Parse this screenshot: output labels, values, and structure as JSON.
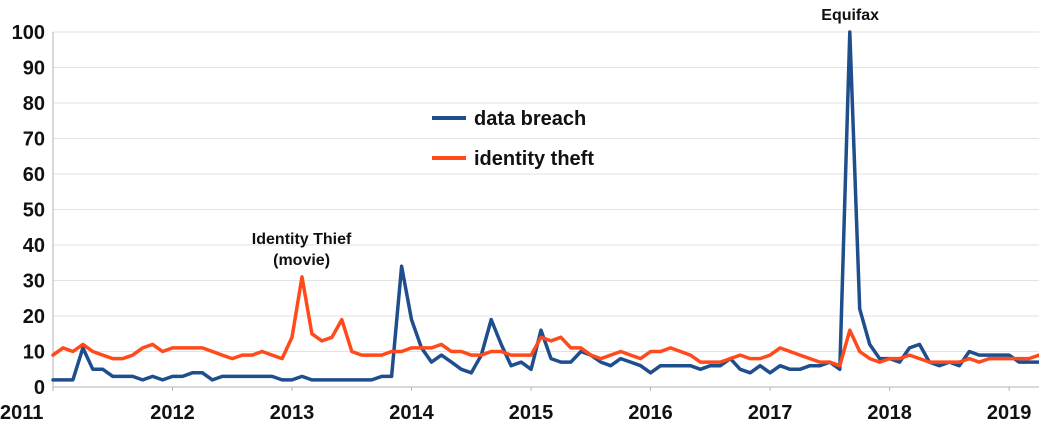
{
  "chart_data": {
    "type": "line",
    "title": "",
    "xlabel": "",
    "ylabel": "",
    "xlim": [
      2011,
      2019.25
    ],
    "ylim": [
      0,
      100
    ],
    "y_ticks": [
      0,
      10,
      20,
      30,
      40,
      50,
      60,
      70,
      80,
      90,
      100
    ],
    "x_ticks": [
      2011,
      2012,
      2013,
      2014,
      2015,
      2016,
      2017,
      2018,
      2019
    ],
    "grid": "horizontal",
    "legend_position": "upper-middle",
    "x_start": "2011-01",
    "x_step": "month",
    "series": [
      {
        "name": "data breach",
        "color": "#1f4e8c",
        "values": [
          2,
          2,
          2,
          11,
          5,
          5,
          3,
          3,
          3,
          2,
          3,
          2,
          3,
          3,
          4,
          4,
          2,
          3,
          3,
          3,
          3,
          3,
          3,
          2,
          2,
          3,
          2,
          2,
          2,
          2,
          2,
          2,
          2,
          3,
          3,
          34,
          19,
          11,
          7,
          9,
          7,
          5,
          4,
          9,
          19,
          12,
          6,
          7,
          5,
          16,
          8,
          7,
          7,
          10,
          9,
          7,
          6,
          8,
          7,
          6,
          4,
          6,
          6,
          6,
          6,
          5,
          6,
          6,
          8,
          5,
          4,
          6,
          4,
          6,
          5,
          5,
          6,
          6,
          7,
          5,
          100,
          22,
          12,
          8,
          8,
          7,
          11,
          12,
          7,
          6,
          7,
          6,
          10,
          9,
          9,
          9,
          9,
          7,
          7,
          7
        ]
      },
      {
        "name": "identity theft",
        "color": "#ff4a1c",
        "values": [
          9,
          11,
          10,
          12,
          10,
          9,
          8,
          8,
          9,
          11,
          12,
          10,
          11,
          11,
          11,
          11,
          10,
          9,
          8,
          9,
          9,
          10,
          9,
          8,
          14,
          31,
          15,
          13,
          14,
          19,
          10,
          9,
          9,
          9,
          10,
          10,
          11,
          11,
          11,
          12,
          10,
          10,
          9,
          9,
          10,
          10,
          9,
          9,
          9,
          14,
          13,
          14,
          11,
          11,
          9,
          8,
          9,
          10,
          9,
          8,
          10,
          10,
          11,
          10,
          9,
          7,
          7,
          7,
          8,
          9,
          8,
          8,
          9,
          11,
          10,
          9,
          8,
          7,
          7,
          6,
          16,
          10,
          8,
          7,
          8,
          8,
          9,
          8,
          7,
          7,
          7,
          7,
          8,
          7,
          8,
          8,
          8,
          8,
          8,
          9
        ]
      }
    ],
    "annotations": [
      {
        "lines": [
          "Identity Thief",
          "(movie)"
        ],
        "x": 2013.08,
        "y": 31
      },
      {
        "lines": [
          "Equifax"
        ],
        "x": 2017.67,
        "y": 100
      }
    ]
  }
}
